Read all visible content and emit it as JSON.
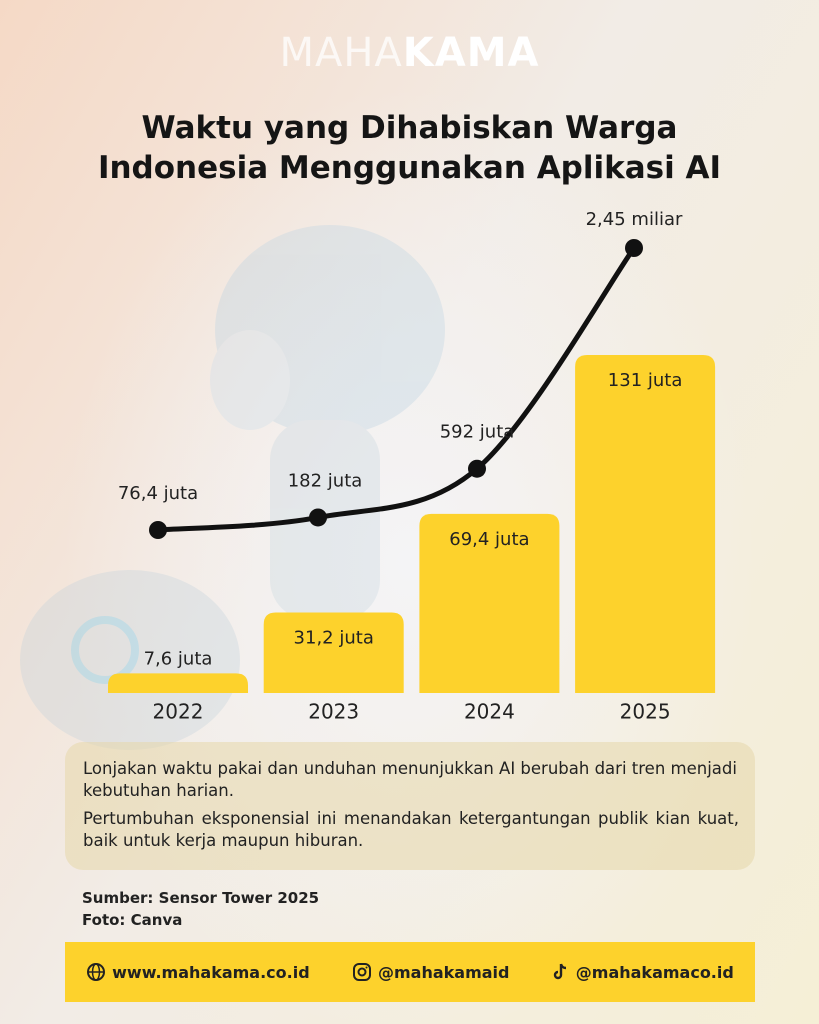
{
  "header": {
    "logo": [
      "MAHA",
      "KAMA"
    ]
  },
  "chart_data": {
    "type": "bar",
    "title": [
      "Waktu yang Dihabiskan Warga",
      "Indonesia Menggunakan Aplikasi AI"
    ],
    "categories": [
      "2022",
      "2023",
      "2024",
      "2025"
    ],
    "series": [
      {
        "type": "bar",
        "color": "#fdd22c",
        "values": [
          7.6,
          31.2,
          69.4,
          131
        ],
        "value_labels": [
          "7,6 juta",
          "31,2 juta",
          "69,4 juta",
          "131 juta"
        ]
      },
      {
        "type": "line",
        "color": "#111111",
        "values": [
          76.4,
          182,
          592,
          2450
        ],
        "value_labels": [
          "76,4 juta",
          "182 juta",
          "592 juta",
          "2,45 miliar"
        ]
      }
    ]
  },
  "notes": [
    "Lonjakan waktu pakai dan unduhan menunjukkan AI berubah dari tren menjadi kebutuhan harian.",
    "Pertumbuhan eksponensial ini menandakan ketergantungan publik kian kuat, baik untuk kerja maupun hiburan."
  ],
  "credits": [
    "Sumber: Sensor Tower 2025",
    "Foto: Canva"
  ],
  "footer": [
    "www.mahakama.co.id",
    "@mahakamaid",
    "@mahakamaco.id"
  ]
}
